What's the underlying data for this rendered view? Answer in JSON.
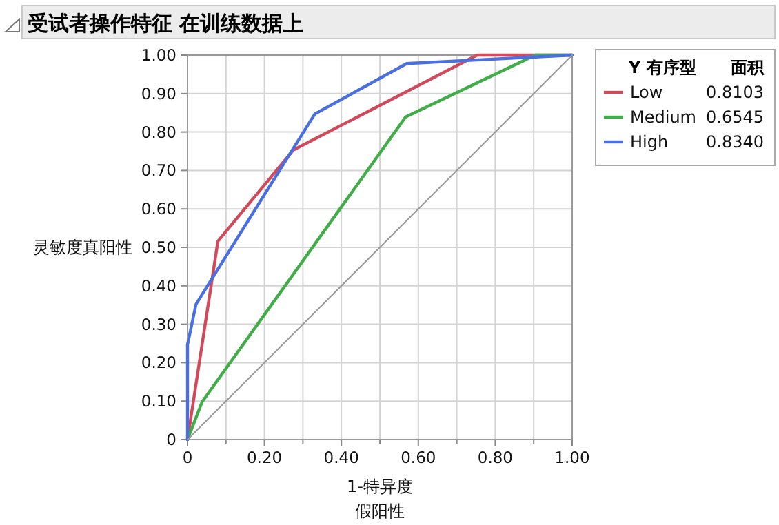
{
  "chart_data": {
    "type": "line",
    "title": "受试者操作特征 在训练数据上",
    "xlabel": "1-特异度假阳性",
    "ylabel": "灵敏度真阳性",
    "legend_title": "Y 有序型",
    "annotations": [
      "面积",
      "0.8103",
      "0.6545",
      "0.8340"
    ],
    "series": [
      {
        "name": "Low",
        "color": "#d14a5c",
        "x": [
          0,
          0.079,
          0.275,
          0.753,
          1
        ],
        "values": [
          0,
          0.516,
          0.753,
          1.0,
          1.0
        ]
      },
      {
        "name": "Medium",
        "color": "#40ad48",
        "x": [
          0,
          0.038,
          0.567,
          0.904,
          1
        ],
        "values": [
          0,
          0.098,
          0.839,
          1.0,
          1.0
        ]
      },
      {
        "name": "High",
        "color": "#4a70e0",
        "x": [
          0,
          0,
          0.022,
          0.331,
          0.57,
          1
        ],
        "values": [
          0,
          0.247,
          0.352,
          0.847,
          0.978,
          1.0
        ]
      },
      {
        "color": "#9a9a9a",
        "x": [
          0,
          1
        ],
        "values": [
          0,
          1
        ]
      }
    ],
    "xlim": [
      0,
      1
    ],
    "ylim": [
      0,
      1
    ],
    "xticks": [
      0,
      {
        "value": 0.1,
        "label": null
      },
      {
        "value": 0.2,
        "label": "0.20"
      },
      {
        "value": 0.3,
        "label": null
      },
      {
        "value": 0.4,
        "label": "0.40"
      },
      {
        "value": 0.5,
        "label": null
      },
      {
        "value": 0.6,
        "label": "0.60"
      },
      {
        "value": 0.7,
        "label": null
      },
      {
        "value": 0.8,
        "label": "0.80"
      },
      {
        "value": 0.9,
        "label": null
      },
      {
        "value": 1,
        "label": "1.00"
      }
    ],
    "yticks": [
      0,
      {
        "value": 0.1,
        "label": "0.10"
      },
      {
        "value": 0.2,
        "label": "0.20"
      },
      {
        "value": 0.3,
        "label": "0.30"
      },
      {
        "value": 0.4,
        "label": "0.40"
      },
      {
        "value": 0.5,
        "label": "0.50"
      },
      {
        "value": 0.6,
        "label": "0.60"
      },
      {
        "value": 0.7,
        "label": "0.70"
      },
      {
        "value": 0.8,
        "label": "0.80"
      },
      {
        "value": 0.9,
        "label": "0.90"
      },
      {
        "value": 1,
        "label": "1.00"
      }
    ],
    "grid": true,
    "legend": "right",
    "marker": "none",
    "line_style": "solid"
  }
}
